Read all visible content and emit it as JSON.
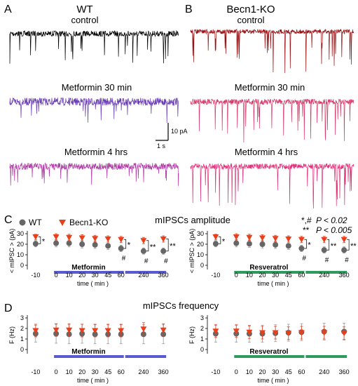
{
  "panels": {
    "A": {
      "letter": "A",
      "genotype": "WT",
      "conditions": [
        "control",
        "Metformin 30 min",
        "Metformin 4 hrs"
      ],
      "trace_colors": [
        "#000000",
        "#6a3fb5",
        "#b03aa8"
      ]
    },
    "B": {
      "letter": "B",
      "genotype": "Becn1-KO",
      "conditions": [
        "control",
        "Metformin 30 min",
        "Metformin 4 hrs"
      ],
      "trace_colors": [
        "#9b0f12",
        "#d63a6a",
        "#e0307a"
      ]
    },
    "scalebar": {
      "amp": "10 pA",
      "time": "1 s"
    },
    "C": {
      "letter": "C",
      "title": "mIPSCs amplitude"
    },
    "D": {
      "letter": "D",
      "title": "mIPSCs frequency"
    }
  },
  "legend": {
    "wt": "WT",
    "ko": "Becn1-KO",
    "wt_color": "#666666",
    "ko_color": "#e8401c"
  },
  "significance": {
    "sym1": "*,#",
    "p1": "P < 0.02",
    "sym2": "**",
    "p2": "P < 0.005"
  },
  "drug_colors": {
    "Metformin": "#5a5ad0",
    "Resveratrol": "#2e9a5e"
  },
  "chart_data": [
    {
      "type": "scatter",
      "panel": "C-left",
      "drug": "Metformin",
      "ylabel": "< mIPSC > (pA)",
      "xlabel": "time ( min )",
      "x": [
        -10,
        0,
        10,
        20,
        30,
        45,
        60,
        240,
        360
      ],
      "ylim": [
        0,
        30
      ],
      "yticks": [
        0,
        10,
        20,
        30
      ],
      "series": [
        {
          "name": "WT",
          "values": [
            20.5,
            21,
            21,
            20,
            19.5,
            18.5,
            16,
            13.5,
            13.5
          ],
          "err": [
            3,
            3.5,
            3.5,
            3.5,
            3.5,
            3.5,
            3,
            3,
            3
          ]
        },
        {
          "name": "Becn1-KO",
          "values": [
            27,
            27,
            26.5,
            26,
            25.5,
            25,
            24.5,
            23.5,
            25
          ],
          "err": [
            2.5,
            3,
            3,
            3,
            3,
            3,
            3,
            3,
            3
          ]
        }
      ]
    },
    {
      "type": "scatter",
      "panel": "C-right",
      "drug": "Resveratrol",
      "ylabel": "< mIPSC > (pA)",
      "xlabel": "time ( min )",
      "x": [
        -10,
        0,
        10,
        20,
        30,
        45,
        60,
        240,
        360
      ],
      "ylim": [
        0,
        30
      ],
      "yticks": [
        0,
        10,
        20,
        30
      ],
      "series": [
        {
          "name": "WT",
          "values": [
            20.5,
            21,
            20.5,
            20,
            19.5,
            18.5,
            16,
            14.5,
            14.5
          ],
          "err": [
            3,
            3.5,
            3.5,
            3.5,
            3.5,
            3.5,
            3,
            3,
            3
          ]
        },
        {
          "name": "Becn1-KO",
          "values": [
            27,
            27,
            26.5,
            26,
            25.5,
            25,
            24.5,
            24.5,
            24.5
          ],
          "err": [
            2.5,
            3,
            3,
            3,
            3,
            3,
            3,
            3,
            3
          ]
        }
      ]
    },
    {
      "type": "scatter",
      "panel": "D-left",
      "drug": "Metformin",
      "ylabel": "F (Hz)",
      "xlabel": "time ( min )",
      "x": [
        -10,
        0,
        10,
        20,
        30,
        45,
        60,
        240,
        360
      ],
      "ylim": [
        0,
        3
      ],
      "yticks": [
        0,
        1,
        2,
        3
      ],
      "series": [
        {
          "name": "WT",
          "values": [
            1.5,
            1.5,
            1.45,
            1.5,
            1.45,
            1.45,
            1.45,
            1.45,
            1.45
          ],
          "err": [
            0.8,
            0.9,
            0.9,
            0.9,
            0.9,
            0.9,
            0.9,
            0.9,
            0.9
          ]
        },
        {
          "name": "Becn1-KO",
          "values": [
            1.8,
            1.85,
            1.85,
            1.8,
            1.8,
            1.8,
            1.8,
            1.95,
            1.85
          ],
          "err": [
            0.6,
            0.6,
            0.6,
            0.6,
            0.6,
            0.6,
            0.6,
            0.6,
            0.6
          ]
        }
      ]
    },
    {
      "type": "scatter",
      "panel": "D-right",
      "drug": "Resveratrol",
      "ylabel": "F (Hz)",
      "xlabel": "time ( min )",
      "x": [
        -10,
        0,
        10,
        20,
        30,
        45,
        60,
        240,
        360
      ],
      "ylim": [
        0,
        3
      ],
      "yticks": [
        0,
        1,
        2,
        3
      ],
      "series": [
        {
          "name": "WT",
          "values": [
            1.5,
            1.5,
            1.5,
            1.5,
            1.55,
            1.6,
            1.65,
            1.7,
            1.7
          ],
          "err": [
            0.8,
            0.8,
            0.8,
            0.8,
            0.8,
            0.8,
            0.8,
            0.8,
            0.8
          ]
        },
        {
          "name": "Becn1-KO",
          "values": [
            1.75,
            1.75,
            1.65,
            1.6,
            1.6,
            1.55,
            1.6,
            1.6,
            1.55
          ],
          "err": [
            0.6,
            0.6,
            0.6,
            0.6,
            0.6,
            0.6,
            0.6,
            0.6,
            0.6
          ]
        }
      ]
    }
  ]
}
